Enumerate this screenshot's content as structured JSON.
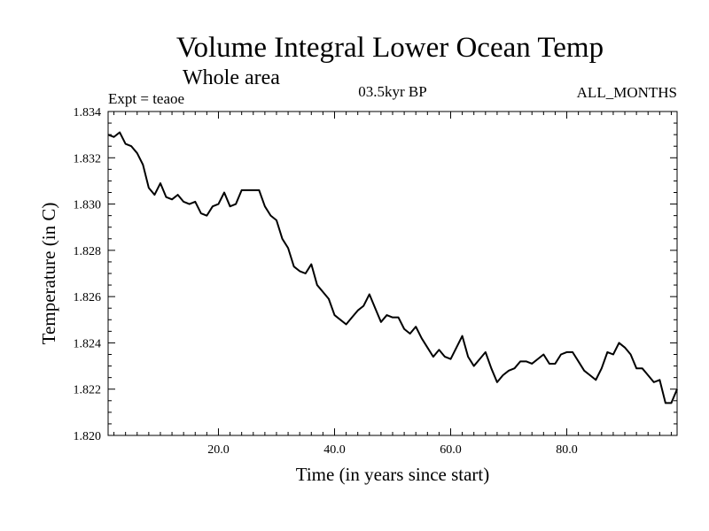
{
  "header": {
    "title": "Volume Integral Lower Ocean Temp",
    "subtitle": "Whole area",
    "expt": "Expt = teaoe",
    "period": "03.5kyr BP",
    "months": "ALL_MONTHS"
  },
  "chart_data": {
    "type": "line",
    "title": "Volume Integral Lower Ocean Temp",
    "subtitle": "Whole area",
    "xlabel": "Time (in years since start)",
    "ylabel": "Temperature (in C)",
    "xlim": [
      1,
      99
    ],
    "ylim": [
      1.82,
      1.834
    ],
    "x_ticks": [
      20,
      40,
      60,
      80
    ],
    "x_tick_labels": [
      "20.0",
      "40.0",
      "60.0",
      "80.0"
    ],
    "y_ticks": [
      1.82,
      1.822,
      1.824,
      1.826,
      1.828,
      1.83,
      1.832,
      1.834
    ],
    "y_tick_labels": [
      "1.820",
      "1.822",
      "1.824",
      "1.826",
      "1.828",
      "1.830",
      "1.832",
      "1.834"
    ],
    "series": [
      {
        "name": "teaoe",
        "color": "#000000",
        "x": [
          1,
          2,
          3,
          4,
          5,
          6,
          7,
          8,
          9,
          10,
          11,
          12,
          13,
          14,
          15,
          16,
          17,
          18,
          19,
          20,
          21,
          22,
          23,
          24,
          25,
          26,
          27,
          28,
          29,
          30,
          31,
          32,
          33,
          34,
          35,
          36,
          37,
          38,
          39,
          40,
          41,
          42,
          43,
          44,
          45,
          46,
          47,
          48,
          49,
          50,
          51,
          52,
          53,
          54,
          55,
          56,
          57,
          58,
          59,
          60,
          61,
          62,
          63,
          64,
          65,
          66,
          67,
          68,
          69,
          70,
          71,
          72,
          73,
          74,
          75,
          76,
          77,
          78,
          79,
          80,
          81,
          82,
          83,
          84,
          85,
          86,
          87,
          88,
          89,
          90,
          91,
          92,
          93,
          94,
          95,
          96,
          97,
          98,
          99
        ],
        "values": [
          1.833,
          1.8329,
          1.8331,
          1.8326,
          1.8325,
          1.8322,
          1.8317,
          1.8307,
          1.8304,
          1.8309,
          1.8303,
          1.8302,
          1.8304,
          1.8301,
          1.83,
          1.8301,
          1.8296,
          1.8295,
          1.8299,
          1.83,
          1.8305,
          1.8299,
          1.83,
          1.8306,
          1.8306,
          1.8306,
          1.8306,
          1.8299,
          1.8295,
          1.8293,
          1.8285,
          1.8281,
          1.8273,
          1.8271,
          1.827,
          1.8274,
          1.8265,
          1.8262,
          1.8259,
          1.8252,
          1.825,
          1.8248,
          1.8251,
          1.8254,
          1.8256,
          1.8261,
          1.8255,
          1.8249,
          1.8252,
          1.8251,
          1.8251,
          1.8246,
          1.8244,
          1.8247,
          1.8242,
          1.8238,
          1.8234,
          1.8237,
          1.8234,
          1.8233,
          1.8238,
          1.8243,
          1.8234,
          1.823,
          1.8233,
          1.8236,
          1.8229,
          1.8223,
          1.8226,
          1.8228,
          1.8229,
          1.8232,
          1.8232,
          1.8231,
          1.8233,
          1.8235,
          1.8231,
          1.8231,
          1.8235,
          1.8236,
          1.8236,
          1.8232,
          1.8228,
          1.8226,
          1.8224,
          1.8229,
          1.8236,
          1.8235,
          1.824,
          1.8238,
          1.8235,
          1.8229,
          1.8229,
          1.8226,
          1.8223,
          1.8224,
          1.8214,
          1.8214,
          1.822
        ]
      }
    ]
  }
}
